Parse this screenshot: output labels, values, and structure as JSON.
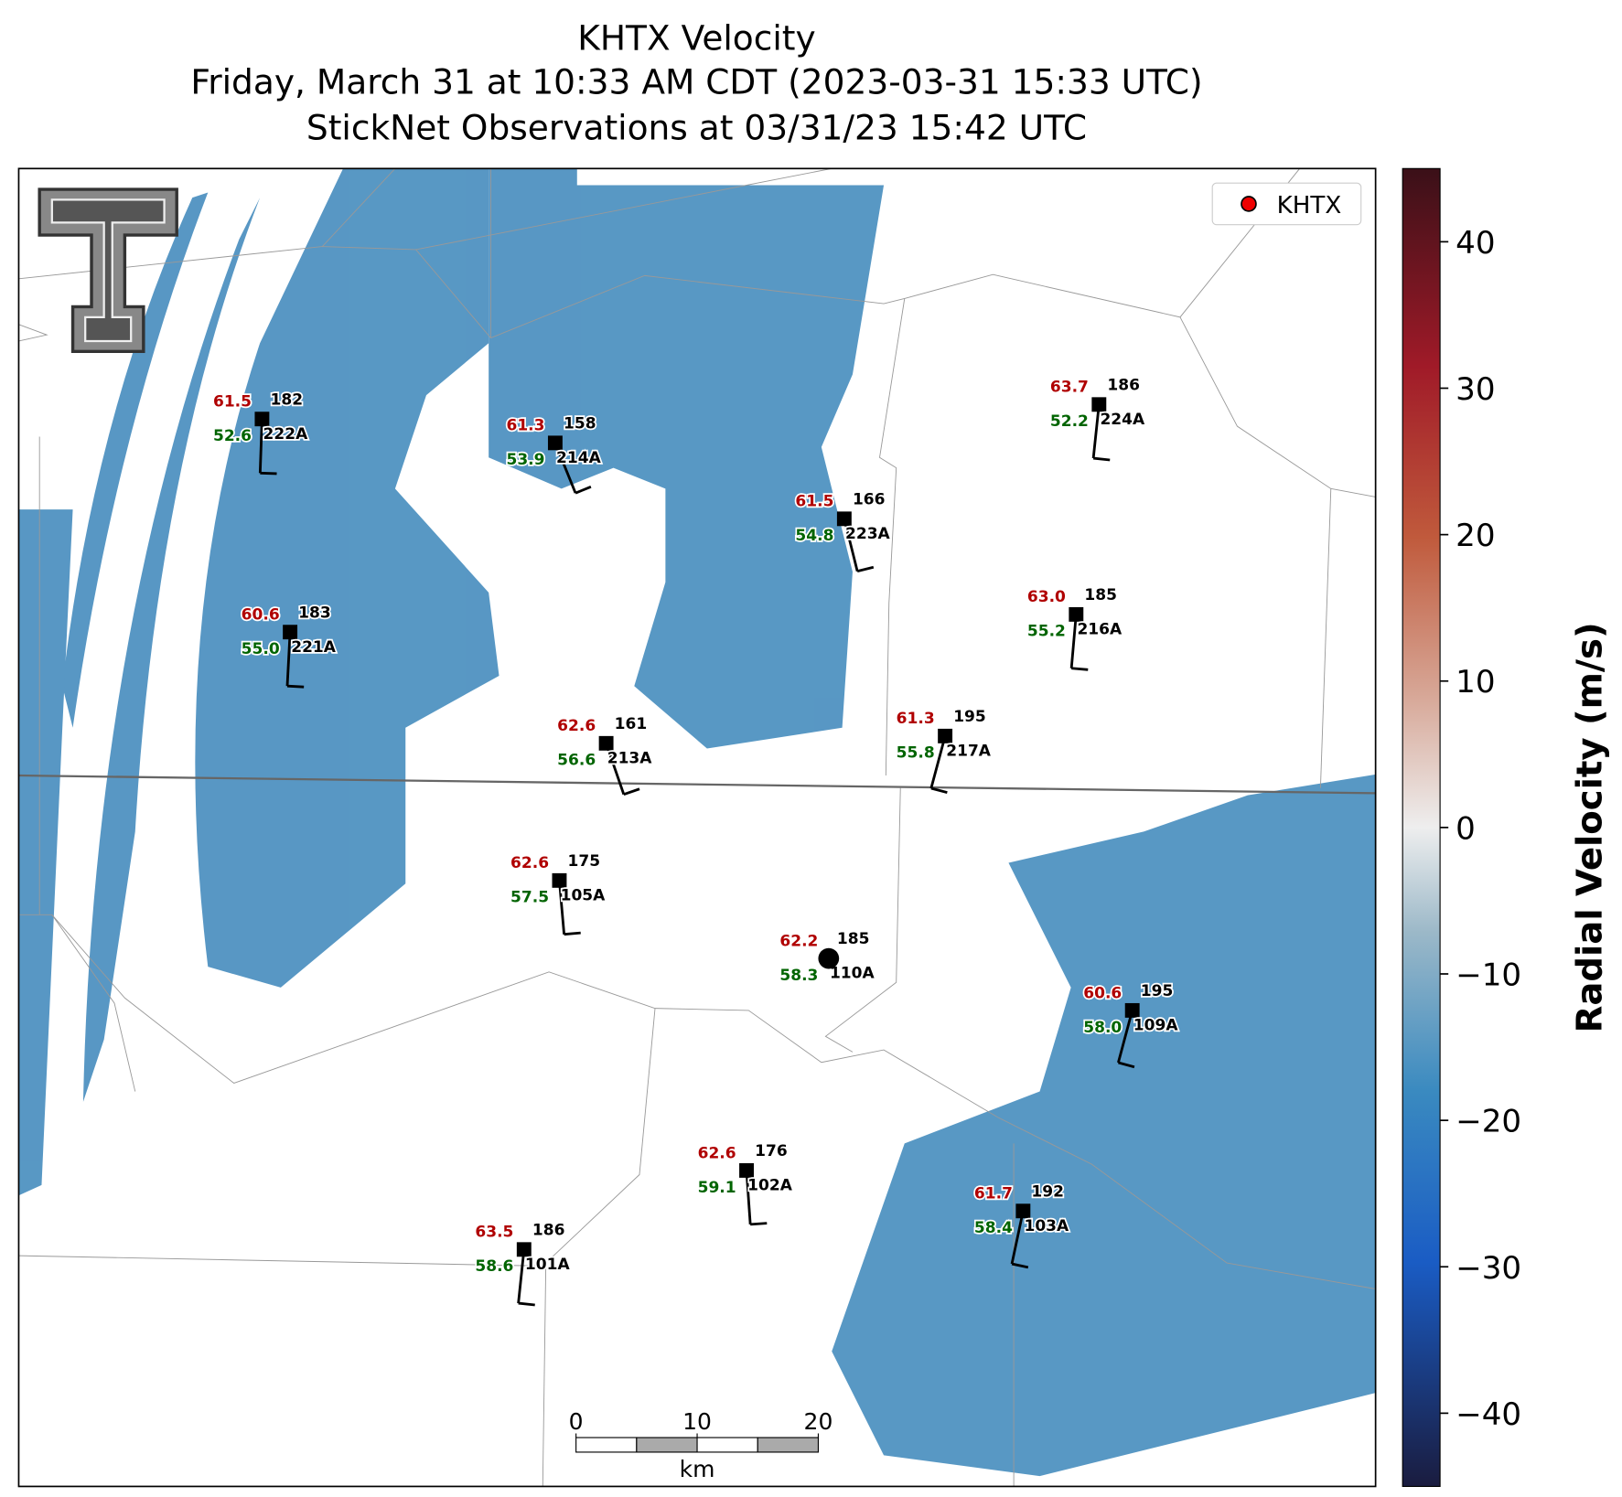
{
  "title": [
    "KHTX Velocity",
    "Friday, March 31 at 10:33 AM CDT (2023-03-31 15:33 UTC)",
    "StickNet Observations at 03/31/23 15:42 UTC"
  ],
  "legend": [
    "KHTX"
  ],
  "colorbar": {
    "label": "Radial Velocity (m/s)",
    "lim": [
      -45,
      45
    ],
    "ticks": [
      {
        "value": -40,
        "label": "−40"
      },
      {
        "value": -30,
        "label": "−30"
      },
      {
        "value": -20,
        "label": "−20"
      },
      {
        "value": -10,
        "label": "−10"
      },
      0,
      10,
      20,
      30,
      40
    ]
  },
  "scale_bar": {
    "lim": [
      0,
      20
    ],
    "ticks": [
      0,
      10,
      20
    ],
    "unit": "km"
  },
  "stations": [
    {
      "red": "61.5",
      "dir": 182,
      "green": "52.6",
      "id": "222A"
    },
    {
      "red": "61.3",
      "dir": 158,
      "green": "53.9",
      "id": "214A"
    },
    {
      "red": "63.7",
      "dir": 186,
      "green": "52.2",
      "id": "224A"
    },
    {
      "red": "61.5",
      "dir": 166,
      "green": "54.8",
      "id": "223A"
    },
    {
      "red": "63.0",
      "dir": 185,
      "green": "55.2",
      "id": "216A"
    },
    {
      "red": "60.6",
      "dir": 183,
      "green": "55.0",
      "id": "221A"
    },
    {
      "red": "62.6",
      "dir": 161,
      "green": "56.6",
      "id": "213A"
    },
    {
      "red": "61.3",
      "dir": 195,
      "green": "55.8",
      "id": "217A"
    },
    {
      "red": "62.6",
      "dir": 175,
      "green": "57.5",
      "id": "105A"
    },
    {
      "red": "62.2",
      "dir": 185,
      "green": "58.3",
      "id": "110A"
    },
    {
      "red": "60.6",
      "dir": 195,
      "green": "58.0",
      "id": "109A"
    },
    {
      "red": "62.6",
      "dir": 176,
      "green": "59.1",
      "id": "102A"
    },
    {
      "red": "61.7",
      "dir": 192,
      "green": "58.4",
      "id": "103A"
    },
    {
      "red": "63.5",
      "dir": 186,
      "green": "58.6",
      "id": "101A"
    }
  ]
}
